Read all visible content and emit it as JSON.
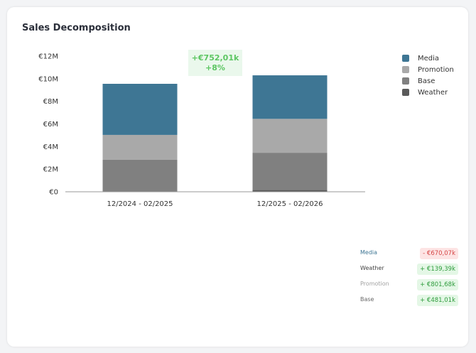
{
  "title": "Sales Decomposition",
  "chart_data": {
    "type": "bar",
    "stacked": true,
    "categories": [
      "12/2024 - 02/2025",
      "12/2025 - 02/2026"
    ],
    "series": [
      {
        "name": "Weather",
        "values": [
          0.03,
          0.17
        ],
        "color": "#5a5a5a"
      },
      {
        "name": "Base",
        "values": [
          2.8,
          3.28
        ],
        "color": "#808080"
      },
      {
        "name": "Promotion",
        "values": [
          2.2,
          3.0
        ],
        "color": "#a9a9a9"
      },
      {
        "name": "Media",
        "values": [
          4.52,
          3.85
        ],
        "color": "#3e7694"
      }
    ],
    "yticks": [
      "€0",
      "€2M",
      "€4M",
      "€6M",
      "€8M",
      "€10M",
      "€12M"
    ],
    "ylim": [
      0,
      12
    ],
    "legend_position": "top-right",
    "legend": [
      "Media",
      "Promotion",
      "Base",
      "Weather"
    ],
    "annotation": {
      "line1": "+€752,01k",
      "line2": "+8%"
    }
  },
  "summary": [
    {
      "label": "Media",
      "value": "- €670,07k",
      "sign": "neg",
      "label_color": "#3e7694"
    },
    {
      "label": "Weather",
      "value": "+ €139,39k",
      "sign": "pos",
      "label_color": "#444444"
    },
    {
      "label": "Promotion",
      "value": "+ €801,68k",
      "sign": "pos",
      "label_color": "#a0a0a0"
    },
    {
      "label": "Base",
      "value": "+ €481,01k",
      "sign": "pos",
      "label_color": "#666666"
    }
  ]
}
